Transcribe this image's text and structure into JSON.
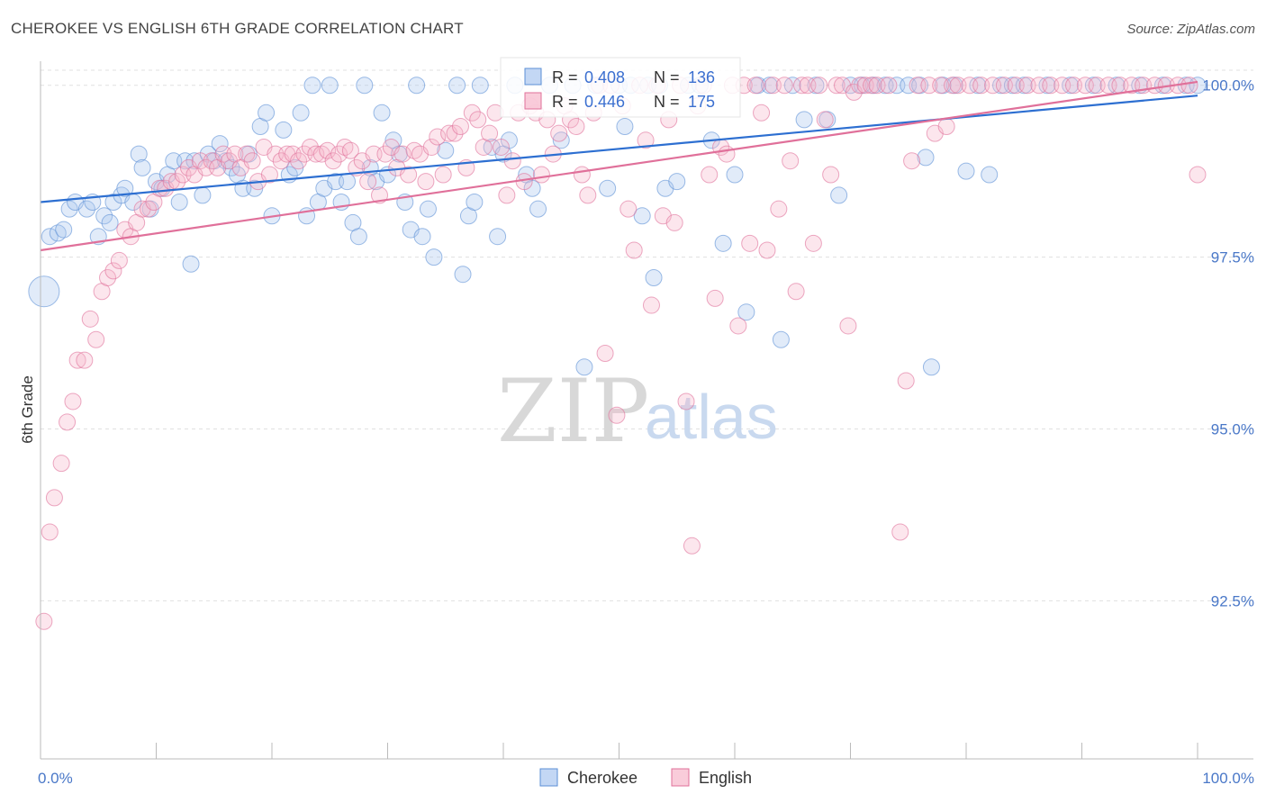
{
  "title": "CHEROKEE VS ENGLISH 6TH GRADE CORRELATION CHART",
  "source": "Source: ZipAtlas.com",
  "watermark": {
    "zip": "ZIP",
    "atlas": "atlas"
  },
  "chart_data": {
    "type": "scatter",
    "ylabel": "6th Grade",
    "xlabel": "",
    "xlim": [
      0,
      100
    ],
    "ylim": [
      90.2,
      100.35
    ],
    "y_ticks": [
      92.5,
      95.0,
      97.5,
      100.0
    ],
    "y_tick_labels": [
      "92.5%",
      "95.0%",
      "97.5%",
      "100.0%"
    ],
    "x_tick_labels": [
      "0.0%",
      "100.0%"
    ],
    "grid": true,
    "legend_position": "top-center",
    "series": [
      {
        "name": "Cherokee",
        "color": "#5b8fd6",
        "fill": "#a9c6ef",
        "R": "0.408",
        "N": "136",
        "trend": [
          [
            0,
            98.3
          ],
          [
            100,
            99.85
          ]
        ],
        "points": [
          [
            0.3,
            97.0
          ],
          [
            0.8,
            97.8
          ],
          [
            1.5,
            97.85
          ],
          [
            2,
            97.9
          ],
          [
            2.5,
            98.2
          ],
          [
            3,
            98.3
          ],
          [
            4,
            98.2
          ],
          [
            4.5,
            98.3
          ],
          [
            5,
            97.8
          ],
          [
            5.5,
            98.1
          ],
          [
            6,
            98.0
          ],
          [
            6.3,
            98.3
          ],
          [
            7,
            98.4
          ],
          [
            7.3,
            98.5
          ],
          [
            8,
            98.3
          ],
          [
            8.5,
            99.0
          ],
          [
            8.8,
            98.8
          ],
          [
            9.5,
            98.2
          ],
          [
            10,
            98.6
          ],
          [
            10.5,
            98.5
          ],
          [
            11,
            98.7
          ],
          [
            11.5,
            98.9
          ],
          [
            12,
            98.3
          ],
          [
            12.5,
            98.9
          ],
          [
            13,
            97.4
          ],
          [
            13.3,
            98.9
          ],
          [
            14,
            98.4
          ],
          [
            14.5,
            99.0
          ],
          [
            15,
            98.9
          ],
          [
            15.5,
            99.15
          ],
          [
            16,
            98.9
          ],
          [
            16.5,
            98.8
          ],
          [
            17,
            98.7
          ],
          [
            17.5,
            98.5
          ],
          [
            18,
            99.0
          ],
          [
            18.5,
            98.5
          ],
          [
            19,
            99.4
          ],
          [
            19.5,
            99.6
          ],
          [
            20,
            98.1
          ],
          [
            21,
            99.35
          ],
          [
            21.5,
            98.7
          ],
          [
            22,
            98.8
          ],
          [
            22.5,
            99.6
          ],
          [
            23,
            98.1
          ],
          [
            23.5,
            100.0
          ],
          [
            24,
            98.3
          ],
          [
            24.5,
            98.5
          ],
          [
            25,
            100.0
          ],
          [
            25.5,
            98.6
          ],
          [
            26,
            98.3
          ],
          [
            26.5,
            98.6
          ],
          [
            27,
            98.0
          ],
          [
            27.5,
            97.8
          ],
          [
            28,
            100.0
          ],
          [
            28.5,
            98.8
          ],
          [
            29,
            98.6
          ],
          [
            29.5,
            99.6
          ],
          [
            30,
            98.7
          ],
          [
            30.5,
            99.2
          ],
          [
            31,
            99.0
          ],
          [
            31.5,
            98.3
          ],
          [
            32,
            97.9
          ],
          [
            32.5,
            100.0
          ],
          [
            33,
            97.8
          ],
          [
            33.5,
            98.2
          ],
          [
            34,
            97.5
          ],
          [
            35,
            99.05
          ],
          [
            36,
            100.0
          ],
          [
            36.5,
            97.25
          ],
          [
            37,
            98.1
          ],
          [
            37.5,
            98.3
          ],
          [
            38,
            100.0
          ],
          [
            39,
            99.1
          ],
          [
            39.5,
            97.8
          ],
          [
            40,
            99.0
          ],
          [
            40.5,
            99.2
          ],
          [
            41,
            100.0
          ],
          [
            42,
            98.7
          ],
          [
            42.5,
            98.5
          ],
          [
            43,
            98.2
          ],
          [
            44,
            100.0
          ],
          [
            45,
            99.2
          ],
          [
            46,
            100.0
          ],
          [
            47,
            95.9
          ],
          [
            48,
            100.0
          ],
          [
            49,
            98.5
          ],
          [
            50,
            100.0
          ],
          [
            50.5,
            99.4
          ],
          [
            51,
            100.0
          ],
          [
            52,
            98.1
          ],
          [
            52.5,
            100.0
          ],
          [
            53,
            97.2
          ],
          [
            53.5,
            100.0
          ],
          [
            54,
            98.5
          ],
          [
            55,
            98.6
          ],
          [
            56,
            100.0
          ],
          [
            57,
            100.0
          ],
          [
            58,
            99.2
          ],
          [
            59,
            97.7
          ],
          [
            60,
            98.7
          ],
          [
            61,
            96.7
          ],
          [
            62,
            100.0
          ],
          [
            63,
            100.0
          ],
          [
            64,
            96.3
          ],
          [
            65,
            100.0
          ],
          [
            66,
            99.5
          ],
          [
            67,
            100.0
          ],
          [
            68,
            99.5
          ],
          [
            69,
            98.4
          ],
          [
            70,
            100.0
          ],
          [
            71,
            100.0
          ],
          [
            72,
            100.0
          ],
          [
            73,
            100.0
          ],
          [
            74,
            100.0
          ],
          [
            75,
            100.0
          ],
          [
            76,
            100.0
          ],
          [
            76.5,
            98.95
          ],
          [
            77,
            95.9
          ],
          [
            78,
            100.0
          ],
          [
            79,
            100.0
          ],
          [
            80,
            98.75
          ],
          [
            81,
            100.0
          ],
          [
            82,
            98.7
          ],
          [
            83,
            100.0
          ],
          [
            84,
            100.0
          ],
          [
            85,
            100.0
          ],
          [
            87,
            100.0
          ],
          [
            89,
            100.0
          ],
          [
            91,
            100.0
          ],
          [
            93,
            100.0
          ],
          [
            95,
            100.0
          ],
          [
            97,
            100.0
          ],
          [
            99,
            100.0
          ],
          [
            100,
            100.0
          ]
        ]
      },
      {
        "name": "English",
        "color": "#e0709a",
        "fill": "#f6b7cb",
        "R": "0.446",
        "N": "175",
        "trend": [
          [
            0,
            97.6
          ],
          [
            100,
            100.05
          ]
        ],
        "points": [
          [
            0.3,
            92.2
          ],
          [
            0.8,
            93.5
          ],
          [
            1.2,
            94.0
          ],
          [
            1.8,
            94.5
          ],
          [
            2.3,
            95.1
          ],
          [
            2.8,
            95.4
          ],
          [
            3.2,
            96.0
          ],
          [
            3.8,
            96.0
          ],
          [
            4.3,
            96.6
          ],
          [
            4.8,
            96.3
          ],
          [
            5.3,
            97.0
          ],
          [
            5.8,
            97.2
          ],
          [
            6.3,
            97.3
          ],
          [
            6.8,
            97.45
          ],
          [
            7.3,
            97.9
          ],
          [
            7.8,
            97.8
          ],
          [
            8.3,
            98.0
          ],
          [
            8.8,
            98.2
          ],
          [
            9.3,
            98.2
          ],
          [
            9.8,
            98.3
          ],
          [
            10.3,
            98.5
          ],
          [
            10.8,
            98.5
          ],
          [
            11.3,
            98.6
          ],
          [
            11.8,
            98.6
          ],
          [
            12.3,
            98.7
          ],
          [
            12.8,
            98.8
          ],
          [
            13.3,
            98.7
          ],
          [
            13.8,
            98.9
          ],
          [
            14.3,
            98.8
          ],
          [
            14.8,
            98.9
          ],
          [
            15.3,
            98.8
          ],
          [
            15.8,
            99.0
          ],
          [
            16.3,
            98.9
          ],
          [
            16.8,
            99.0
          ],
          [
            17.3,
            98.8
          ],
          [
            17.8,
            99.0
          ],
          [
            18.3,
            98.9
          ],
          [
            18.8,
            98.6
          ],
          [
            19.3,
            99.1
          ],
          [
            19.8,
            98.7
          ],
          [
            20.3,
            99.0
          ],
          [
            20.8,
            98.9
          ],
          [
            21.3,
            99.0
          ],
          [
            21.8,
            99.0
          ],
          [
            22.3,
            98.9
          ],
          [
            22.8,
            99.0
          ],
          [
            23.3,
            99.1
          ],
          [
            23.8,
            99.0
          ],
          [
            24.3,
            99.0
          ],
          [
            24.8,
            99.05
          ],
          [
            25.3,
            98.9
          ],
          [
            25.8,
            99.0
          ],
          [
            26.3,
            99.1
          ],
          [
            26.8,
            99.05
          ],
          [
            27.3,
            98.8
          ],
          [
            27.8,
            98.9
          ],
          [
            28.3,
            98.6
          ],
          [
            28.8,
            99.0
          ],
          [
            29.3,
            98.4
          ],
          [
            29.8,
            99.0
          ],
          [
            30.3,
            99.1
          ],
          [
            30.8,
            98.8
          ],
          [
            31.3,
            99.0
          ],
          [
            31.8,
            98.7
          ],
          [
            32.3,
            99.05
          ],
          [
            32.8,
            99.0
          ],
          [
            33.3,
            98.6
          ],
          [
            33.8,
            99.1
          ],
          [
            34.3,
            99.25
          ],
          [
            34.8,
            98.7
          ],
          [
            35.3,
            99.3
          ],
          [
            35.8,
            99.3
          ],
          [
            36.3,
            99.4
          ],
          [
            36.8,
            98.8
          ],
          [
            37.3,
            99.6
          ],
          [
            37.8,
            99.5
          ],
          [
            38.3,
            99.1
          ],
          [
            38.8,
            99.3
          ],
          [
            39.3,
            99.6
          ],
          [
            39.8,
            99.1
          ],
          [
            40.3,
            98.4
          ],
          [
            40.8,
            98.9
          ],
          [
            41.3,
            99.6
          ],
          [
            41.8,
            98.6
          ],
          [
            42.3,
            99.7
          ],
          [
            42.8,
            99.6
          ],
          [
            43.3,
            98.7
          ],
          [
            43.8,
            99.5
          ],
          [
            44.3,
            99.0
          ],
          [
            44.8,
            99.3
          ],
          [
            45.3,
            99.7
          ],
          [
            45.8,
            99.5
          ],
          [
            46.3,
            99.4
          ],
          [
            46.8,
            98.7
          ],
          [
            47.3,
            98.4
          ],
          [
            47.8,
            99.6
          ],
          [
            48.3,
            100.0
          ],
          [
            48.8,
            96.1
          ],
          [
            49.3,
            100.0
          ],
          [
            49.8,
            95.2
          ],
          [
            50.3,
            99.7
          ],
          [
            50.8,
            98.2
          ],
          [
            51.3,
            97.6
          ],
          [
            51.8,
            100.0
          ],
          [
            52.3,
            99.2
          ],
          [
            52.8,
            96.8
          ],
          [
            53.3,
            100.0
          ],
          [
            53.8,
            98.1
          ],
          [
            54.3,
            99.5
          ],
          [
            54.8,
            98.0
          ],
          [
            55.3,
            100.0
          ],
          [
            55.8,
            95.4
          ],
          [
            56.3,
            93.3
          ],
          [
            56.8,
            99.7
          ],
          [
            57.3,
            100.0
          ],
          [
            57.8,
            98.7
          ],
          [
            58.3,
            96.9
          ],
          [
            58.8,
            99.1
          ],
          [
            59.3,
            99.0
          ],
          [
            59.8,
            100.0
          ],
          [
            60.3,
            96.5
          ],
          [
            60.8,
            100.0
          ],
          [
            61.3,
            97.7
          ],
          [
            61.8,
            100.0
          ],
          [
            62.3,
            99.6
          ],
          [
            62.8,
            97.6
          ],
          [
            63.3,
            100.0
          ],
          [
            63.8,
            98.2
          ],
          [
            64.3,
            100.0
          ],
          [
            64.8,
            98.9
          ],
          [
            65.3,
            97.0
          ],
          [
            65.8,
            100.0
          ],
          [
            66.3,
            100.0
          ],
          [
            66.8,
            97.7
          ],
          [
            67.3,
            100.0
          ],
          [
            67.8,
            99.5
          ],
          [
            68.3,
            98.7
          ],
          [
            68.8,
            100.0
          ],
          [
            69.3,
            100.0
          ],
          [
            69.8,
            96.5
          ],
          [
            70.3,
            99.9
          ],
          [
            70.8,
            100.0
          ],
          [
            71.3,
            100.0
          ],
          [
            71.8,
            100.0
          ],
          [
            72.3,
            100.0
          ],
          [
            73.3,
            100.0
          ],
          [
            74.3,
            93.5
          ],
          [
            74.8,
            95.7
          ],
          [
            75.3,
            98.9
          ],
          [
            75.8,
            100.0
          ],
          [
            76.8,
            100.0
          ],
          [
            77.3,
            99.3
          ],
          [
            77.8,
            100.0
          ],
          [
            78.3,
            99.4
          ],
          [
            78.8,
            100.0
          ],
          [
            79.3,
            100.0
          ],
          [
            80.3,
            100.0
          ],
          [
            81.3,
            100.0
          ],
          [
            82.3,
            100.0
          ],
          [
            83.3,
            100.0
          ],
          [
            84.3,
            100.0
          ],
          [
            85.3,
            100.0
          ],
          [
            86.3,
            100.0
          ],
          [
            87.3,
            100.0
          ],
          [
            88.3,
            100.0
          ],
          [
            89.3,
            100.0
          ],
          [
            90.3,
            100.0
          ],
          [
            91.3,
            100.0
          ],
          [
            92.3,
            100.0
          ],
          [
            93.3,
            100.0
          ],
          [
            94.3,
            100.0
          ],
          [
            95.3,
            100.0
          ],
          [
            96.3,
            100.0
          ],
          [
            97.3,
            100.0
          ],
          [
            98.3,
            100.0
          ],
          [
            99.3,
            100.0
          ],
          [
            100,
            98.7
          ]
        ]
      }
    ]
  }
}
